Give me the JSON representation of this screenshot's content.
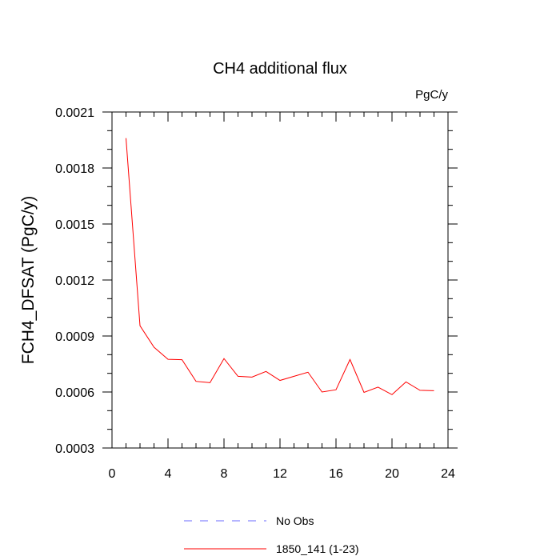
{
  "chart_data": {
    "type": "line",
    "title": "CH4 additional flux",
    "units": "PgC/y",
    "ylabel": "FCH4_DFSAT  (PgC/y)",
    "xlabel": "",
    "xlim": [
      0,
      24
    ],
    "ylim": [
      0.0003,
      0.0021
    ],
    "xticks": [
      0,
      4,
      8,
      12,
      16,
      20,
      24
    ],
    "yticks": [
      "0.0003",
      "0.0006",
      "0.0009",
      "0.0012",
      "0.0015",
      "0.0018",
      "0.0021"
    ],
    "grid": false,
    "legend_position": "bottom",
    "series": [
      {
        "name": "No Obs",
        "color": "#6b6bff",
        "dash": true,
        "x": [],
        "y": []
      },
      {
        "name": "1850_141 (1-23)",
        "color": "#ff0000",
        "dash": false,
        "x": [
          1,
          2,
          3,
          4,
          5,
          6,
          7,
          8,
          9,
          10,
          11,
          12,
          13,
          14,
          15,
          16,
          17,
          18,
          19,
          20,
          21,
          22,
          23
        ],
        "y": [
          0.00196,
          0.000955,
          0.00084,
          0.000775,
          0.000773,
          0.000657,
          0.00065,
          0.000779,
          0.000684,
          0.00068,
          0.00071,
          0.000662,
          0.000684,
          0.000706,
          0.0006,
          0.000612,
          0.000774,
          0.000598,
          0.000626,
          0.000586,
          0.000654,
          0.000609,
          0.000607
        ]
      }
    ]
  }
}
